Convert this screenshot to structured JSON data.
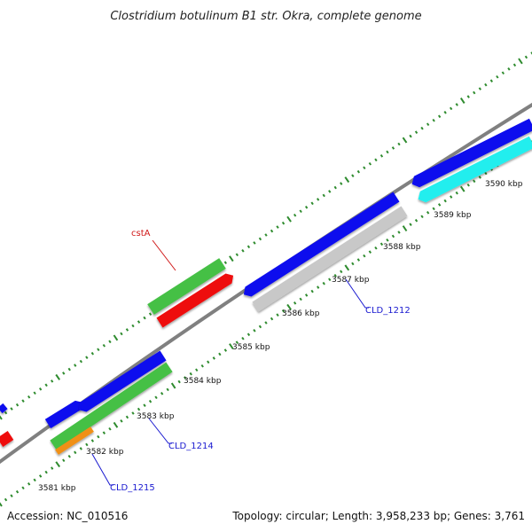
{
  "title": "Clostridium botulinum B1 str. Okra, complete genome",
  "footer": {
    "accession": "Accession: NC_010516",
    "summary": "Topology: circular; Length: 3,958,233 bp; Genes: 3,761"
  },
  "colors": {
    "backbone": "#808080",
    "tick": "#2e8b2e",
    "blue": "#1010ee",
    "green": "#44c044",
    "red": "#ee1010",
    "gray": "#c8c8c8",
    "cyan": "#22eeee",
    "orange": "#f09018",
    "label_red": "#d01818",
    "label_blue": "#1a1ad0"
  },
  "kbp_ticks": [
    "3581 kbp",
    "3582 kbp",
    "3583 kbp",
    "3584 kbp",
    "3585 kbp",
    "3586 kbp",
    "3587 kbp",
    "3588 kbp",
    "3589 kbp",
    "3590 kbp"
  ],
  "gene_labels": [
    "cstA",
    "CLD_1212",
    "CLD_1214",
    "CLD_1215"
  ]
}
